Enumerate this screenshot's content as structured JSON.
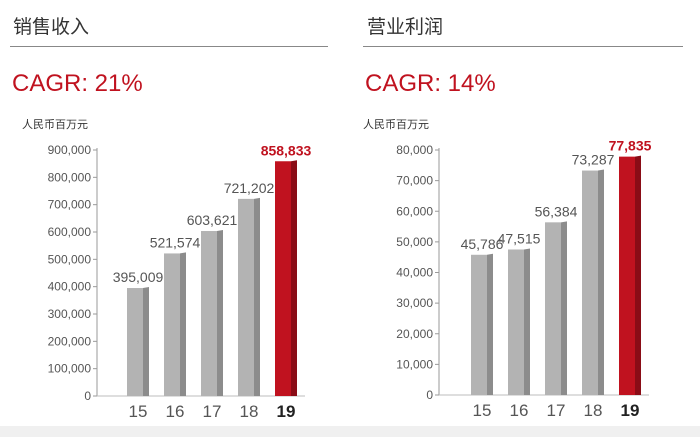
{
  "colors": {
    "bar_gray": "#b3b3b3",
    "bar_gray_side": "#8c8c8c",
    "bar_highlight": "#c0121f",
    "bar_highlight_side": "#8a0c16",
    "accent_text": "#c0121f",
    "label_text": "#555555"
  },
  "chart_data": [
    {
      "type": "bar",
      "title": "销售收入",
      "subtitle": "CAGR: 21%",
      "ylabel": "人民币百万元",
      "xlabel": "",
      "categories": [
        "15",
        "16",
        "17",
        "18",
        "19"
      ],
      "values": [
        395009,
        521574,
        603621,
        721202,
        858833
      ],
      "value_labels": [
        "395,009",
        "521,574",
        "603,621",
        "721,202",
        "858,833"
      ],
      "highlight_index": 4,
      "ylim": [
        0,
        900000
      ],
      "yticks": [
        0,
        100000,
        200000,
        300000,
        400000,
        500000,
        600000,
        700000,
        800000,
        900000
      ],
      "ytick_labels": [
        "0",
        "100,000",
        "200,000",
        "300,000",
        "400,000",
        "500,000",
        "600,000",
        "700,000",
        "800,000",
        "900,000"
      ],
      "grid": false,
      "legend": "none"
    },
    {
      "type": "bar",
      "title": "营业利润",
      "subtitle": "CAGR: 14%",
      "ylabel": "人民币百万元",
      "xlabel": "",
      "categories": [
        "15",
        "16",
        "17",
        "18",
        "19"
      ],
      "values": [
        45786,
        47515,
        56384,
        73287,
        77835
      ],
      "value_labels": [
        "45,786",
        "47,515",
        "56,384",
        "73,287",
        "77,835"
      ],
      "highlight_index": 4,
      "ylim": [
        0,
        80000
      ],
      "yticks": [
        0,
        10000,
        20000,
        30000,
        40000,
        50000,
        60000,
        70000,
        80000
      ],
      "ytick_labels": [
        "0",
        "10,000",
        "20,000",
        "30,000",
        "40,000",
        "50,000",
        "60,000",
        "70,000",
        "80,000"
      ],
      "grid": false,
      "legend": "none"
    }
  ]
}
